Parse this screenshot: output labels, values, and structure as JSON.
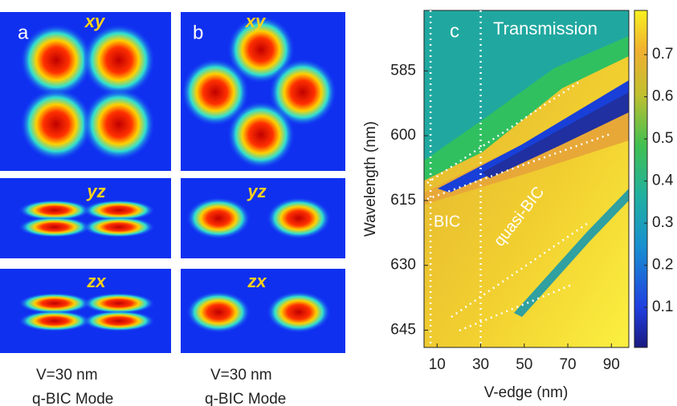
{
  "panels": [
    {
      "letter": "a",
      "views": [
        "xy",
        "yz",
        "zx"
      ],
      "caption": [
        "V=30 nm",
        "q-BIC Mode"
      ]
    },
    {
      "letter": "b",
      "views": [
        "xy",
        "yz",
        "zx"
      ],
      "caption": [
        "V=30 nm",
        "q-BIC Mode"
      ]
    }
  ],
  "chart_data": {
    "type": "heatmap",
    "letter": "c",
    "title": "Transmission",
    "x_label": "V-edge (nm)",
    "y_label": "Wavelength (nm)",
    "xlim": [
      4,
      98
    ],
    "xticks": [
      10,
      30,
      50,
      70,
      90
    ],
    "ylim": [
      571,
      649
    ],
    "yticks": [
      585,
      600,
      615,
      630,
      645
    ],
    "clim": [
      0.005,
      0.805
    ],
    "cticks": [
      0.1,
      0.2,
      0.3,
      0.4,
      0.5,
      0.6,
      0.7
    ],
    "vlines": [
      7,
      30
    ],
    "annotations": [
      "BIC",
      "quasi-BIC"
    ]
  }
}
